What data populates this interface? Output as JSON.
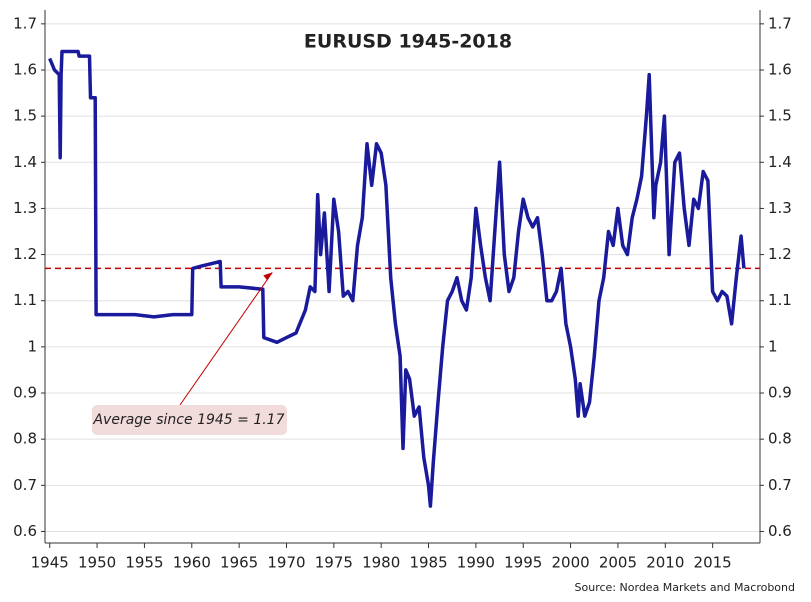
{
  "chart_data": {
    "type": "line",
    "title": "EURUSD 1945-2018",
    "source": "Source: Nordea Markets and Macrobond",
    "annotation": "Average since 1945 = 1.17",
    "average": 1.17,
    "average_color": "#c00000",
    "x": [
      1945,
      1945.5,
      1946,
      1946.1,
      1946.2,
      1946.3,
      1948,
      1948.1,
      1949.2,
      1949.3,
      1949.8,
      1949.9,
      1952,
      1954,
      1956,
      1958,
      1960,
      1960.1,
      1961,
      1962,
      1963,
      1963.1,
      1965,
      1967.5,
      1967.6,
      1969,
      1970,
      1971,
      1972,
      1972.5,
      1973,
      1973.3,
      1973.6,
      1974,
      1974.5,
      1975,
      1975.5,
      1976,
      1976.5,
      1977,
      1977.5,
      1978,
      1978.5,
      1979,
      1979.5,
      1980,
      1980.5,
      1981,
      1981.5,
      1982,
      1982.3,
      1982.6,
      1983,
      1983.5,
      1984,
      1984.5,
      1985,
      1985.2,
      1985.5,
      1986,
      1986.5,
      1987,
      1987.5,
      1988,
      1988.5,
      1989,
      1989.5,
      1990,
      1990.5,
      1991,
      1991.5,
      1992,
      1992.5,
      1993,
      1993.5,
      1994,
      1994.5,
      1995,
      1995.5,
      1996,
      1996.5,
      1997,
      1997.5,
      1998,
      1998.5,
      1999,
      1999.5,
      2000,
      2000.5,
      2000.8,
      2001,
      2001.5,
      2002,
      2002.5,
      2003,
      2003.5,
      2004,
      2004.5,
      2005,
      2005.5,
      2006,
      2006.5,
      2007,
      2007.5,
      2008,
      2008.3,
      2008.8,
      2009,
      2009.5,
      2009.9,
      2010.4,
      2011,
      2011.5,
      2012,
      2012.5,
      2013,
      2013.5,
      2014,
      2014.5,
      2015,
      2015.5,
      2016,
      2016.5,
      2017,
      2017.5,
      2018,
      2018.3
    ],
    "series": [
      {
        "name": "EURUSD",
        "color": "#1a1a9c",
        "values": [
          1.625,
          1.6,
          1.59,
          1.41,
          1.59,
          1.64,
          1.64,
          1.63,
          1.63,
          1.54,
          1.54,
          1.07,
          1.07,
          1.07,
          1.065,
          1.07,
          1.07,
          1.17,
          1.175,
          1.18,
          1.185,
          1.13,
          1.13,
          1.125,
          1.02,
          1.01,
          1.02,
          1.03,
          1.08,
          1.13,
          1.12,
          1.33,
          1.2,
          1.29,
          1.12,
          1.32,
          1.25,
          1.11,
          1.12,
          1.1,
          1.22,
          1.28,
          1.44,
          1.35,
          1.44,
          1.42,
          1.35,
          1.15,
          1.05,
          0.98,
          0.78,
          0.95,
          0.93,
          0.85,
          0.87,
          0.76,
          0.7,
          0.655,
          0.75,
          0.88,
          1.0,
          1.1,
          1.12,
          1.15,
          1.1,
          1.08,
          1.15,
          1.3,
          1.22,
          1.15,
          1.1,
          1.25,
          1.4,
          1.2,
          1.12,
          1.15,
          1.25,
          1.32,
          1.28,
          1.26,
          1.28,
          1.2,
          1.1,
          1.1,
          1.12,
          1.17,
          1.05,
          1.0,
          0.93,
          0.85,
          0.92,
          0.85,
          0.88,
          0.98,
          1.1,
          1.15,
          1.25,
          1.22,
          1.3,
          1.22,
          1.2,
          1.28,
          1.32,
          1.37,
          1.5,
          1.59,
          1.28,
          1.35,
          1.4,
          1.5,
          1.2,
          1.4,
          1.42,
          1.3,
          1.22,
          1.32,
          1.3,
          1.38,
          1.36,
          1.12,
          1.1,
          1.12,
          1.11,
          1.05,
          1.15,
          1.24,
          1.17
        ]
      }
    ],
    "xlim": [
      1944.5,
      2020
    ],
    "xticks": [
      1945,
      1950,
      1955,
      1960,
      1965,
      1970,
      1975,
      1980,
      1985,
      1990,
      1995,
      2000,
      2005,
      2010,
      2015
    ],
    "ylim": [
      0.575,
      1.73
    ],
    "yticks": [
      0.6,
      0.7,
      0.8,
      0.9,
      1.0,
      1.1,
      1.2,
      1.3,
      1.4,
      1.5,
      1.6,
      1.7
    ],
    "y2lim": [
      0.575,
      1.73
    ],
    "y2ticks": [
      0.6,
      0.7,
      0.8,
      0.9,
      1.0,
      1.1,
      1.2,
      1.3,
      1.4,
      1.5,
      1.6,
      1.7
    ],
    "grid": true
  }
}
